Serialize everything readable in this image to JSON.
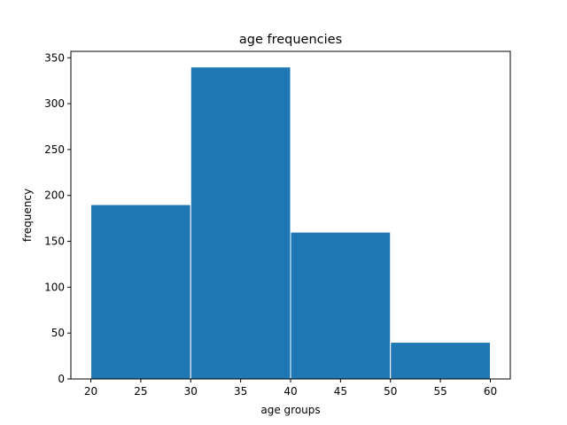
{
  "chart_data": {
    "type": "bar",
    "title": "age frequencies",
    "xlabel": "age groups",
    "ylabel": "frequency",
    "bins": [
      {
        "from": 20,
        "to": 30,
        "value": 190
      },
      {
        "from": 30,
        "to": 40,
        "value": 340
      },
      {
        "from": 40,
        "to": 50,
        "value": 160
      },
      {
        "from": 50,
        "to": 60,
        "value": 40
      }
    ],
    "xlim": [
      18,
      62
    ],
    "ylim": [
      0,
      357
    ],
    "xticks": [
      20,
      25,
      30,
      35,
      40,
      45,
      50,
      55,
      60
    ],
    "yticks": [
      0,
      50,
      100,
      150,
      200,
      250,
      300,
      350
    ],
    "bar_color": "#1f77b4",
    "edge_color": "#ffffff",
    "grid": false
  }
}
